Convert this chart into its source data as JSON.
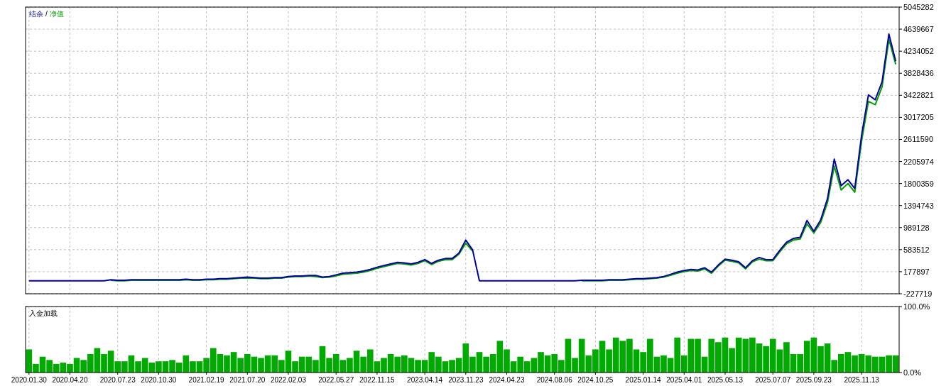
{
  "chart_data": [
    {
      "type": "line",
      "legend": "top left",
      "annotations": [
        "/"
      ],
      "grid": true,
      "tick_labels": "y",
      "line_style": "solid",
      "categories": [
        null,
        null,
        null,
        null,
        null,
        null,
        null,
        null,
        null,
        null,
        null,
        null,
        null,
        null,
        null,
        null,
        null,
        null,
        null,
        null,
        null,
        null,
        null,
        null,
        null,
        null,
        null,
        null,
        null,
        null,
        null,
        null,
        null,
        null,
        null,
        null,
        null,
        null,
        null,
        null,
        null,
        null,
        null,
        null,
        null,
        null,
        null,
        null,
        null,
        null,
        null,
        null,
        null,
        null,
        null,
        null,
        null,
        null,
        null,
        null,
        null,
        null,
        null,
        null,
        null,
        null,
        null,
        null,
        null,
        null,
        null,
        null,
        null,
        null,
        null,
        null,
        null,
        null,
        null,
        null,
        null,
        null,
        null,
        null,
        null,
        null,
        null,
        null,
        null,
        null,
        null,
        null,
        null,
        null,
        null,
        null,
        null,
        null,
        null,
        null,
        null,
        null,
        null,
        null,
        null,
        null,
        null,
        null,
        null,
        null,
        null,
        null,
        null,
        null,
        null,
        null,
        null,
        null,
        null,
        null,
        null,
        null,
        null,
        null,
        null,
        null,
        null,
        null
      ],
      "ylim": [
        -227719,
        5045282
      ],
      "yticks": [
        -227719,
        177897,
        583512,
        989128,
        1394743,
        1800359,
        2205974,
        2611590,
        3017205,
        3422821,
        3828436,
        4234052,
        4639667,
        5045282
      ],
      "series": [
        {
          "name": "结余",
          "color": "#0000a0",
          "values": [
            10000,
            10000,
            10000,
            10000,
            10000,
            10000,
            10000,
            10000,
            10000,
            10000,
            10000,
            10000,
            30000,
            20000,
            20000,
            30000,
            30000,
            30000,
            30000,
            30000,
            30000,
            30000,
            30000,
            40000,
            30000,
            30000,
            40000,
            40000,
            50000,
            50000,
            60000,
            70000,
            80000,
            70000,
            60000,
            60000,
            70000,
            70000,
            90000,
            100000,
            100000,
            110000,
            110000,
            80000,
            90000,
            120000,
            150000,
            160000,
            170000,
            190000,
            220000,
            260000,
            290000,
            320000,
            350000,
            340000,
            320000,
            350000,
            400000,
            330000,
            390000,
            420000,
            420000,
            520000,
            760000,
            580000,
            10000,
            10000,
            10000,
            10000,
            10000,
            10000,
            10000,
            10000,
            10000,
            10000,
            10000,
            10000,
            10000,
            10000,
            10000,
            20000,
            20000,
            20000,
            20000,
            30000,
            30000,
            30000,
            40000,
            50000,
            50000,
            60000,
            70000,
            90000,
            130000,
            170000,
            200000,
            220000,
            210000,
            250000,
            170000,
            300000,
            410000,
            390000,
            360000,
            250000,
            380000,
            440000,
            400000,
            400000,
            570000,
            720000,
            790000,
            810000,
            1120000,
            920000,
            1130000,
            1520000,
            2250000,
            1760000,
            1870000,
            1710000,
            2690000,
            3430000,
            3340000,
            3670000,
            4550000,
            4050000
          ]
        },
        {
          "name": "净值",
          "color": "#00a000",
          "values": [
            null,
            null,
            null,
            null,
            null,
            null,
            null,
            null,
            null,
            null,
            null,
            null,
            20000,
            10000,
            10000,
            20000,
            20000,
            20000,
            20000,
            20000,
            20000,
            20000,
            20000,
            30000,
            20000,
            20000,
            30000,
            30000,
            40000,
            40000,
            50000,
            60000,
            60000,
            60000,
            50000,
            50000,
            60000,
            60000,
            80000,
            90000,
            90000,
            100000,
            90000,
            70000,
            80000,
            100000,
            130000,
            140000,
            150000,
            170000,
            200000,
            240000,
            270000,
            300000,
            330000,
            320000,
            300000,
            330000,
            380000,
            310000,
            370000,
            400000,
            400000,
            500000,
            700000,
            560000,
            null,
            null,
            null,
            null,
            null,
            null,
            null,
            null,
            null,
            null,
            null,
            null,
            null,
            null,
            null,
            10000,
            10000,
            10000,
            10000,
            20000,
            20000,
            20000,
            30000,
            40000,
            40000,
            50000,
            60000,
            80000,
            110000,
            150000,
            180000,
            200000,
            190000,
            230000,
            150000,
            280000,
            390000,
            370000,
            340000,
            230000,
            360000,
            410000,
            380000,
            380000,
            540000,
            690000,
            760000,
            780000,
            1060000,
            890000,
            1080000,
            1450000,
            2120000,
            1680000,
            1800000,
            1640000,
            2580000,
            3310000,
            3250000,
            3580000,
            4450000,
            3990000
          ]
        }
      ]
    },
    {
      "type": "bar",
      "title": "入金加载",
      "grid": true,
      "categories": [
        "2020.01.30",
        null,
        null,
        null,
        null,
        null,
        "2020.04.20",
        null,
        null,
        null,
        null,
        null,
        null,
        "2020.07.23",
        null,
        null,
        null,
        null,
        null,
        "2020.10.30",
        null,
        null,
        null,
        null,
        null,
        null,
        "2021.02.19",
        null,
        null,
        null,
        null,
        null,
        "2021.07.20",
        null,
        null,
        null,
        null,
        null,
        "2022.02.03",
        null,
        null,
        null,
        null,
        null,
        null,
        "2022.05.27",
        null,
        null,
        null,
        null,
        null,
        "2022.11.15",
        null,
        null,
        null,
        null,
        null,
        null,
        "2023.04.14",
        null,
        null,
        null,
        null,
        null,
        "2023.11.23",
        null,
        null,
        null,
        null,
        null,
        "2024.04.23",
        null,
        null,
        null,
        null,
        null,
        null,
        "2024.08.06",
        null,
        null,
        null,
        null,
        null,
        "2024.10.25",
        null,
        null,
        null,
        null,
        null,
        null,
        "2025.01.14",
        null,
        null,
        null,
        null,
        null,
        "2025.04.01",
        null,
        null,
        null,
        null,
        null,
        "2025.05.13",
        null,
        null,
        null,
        null,
        null,
        null,
        "2025.07.07",
        null,
        null,
        null,
        null,
        null,
        "2025.09.23",
        null,
        null,
        null,
        null,
        null,
        null,
        "2025.11.13",
        null,
        null,
        null,
        null,
        null
      ],
      "ylim": [
        0,
        100
      ],
      "yticks": [
        {
          "value": 0,
          "label": "0.0%"
        },
        {
          "value": 100,
          "label": "100.0%"
        }
      ],
      "series": [
        {
          "color": "#00aa00",
          "values": [
            35,
            13,
            24,
            19,
            13,
            15,
            13,
            22,
            19,
            28,
            37,
            28,
            33,
            17,
            17,
            26,
            17,
            22,
            15,
            17,
            17,
            19,
            15,
            26,
            17,
            17,
            22,
            37,
            28,
            26,
            31,
            22,
            28,
            24,
            22,
            26,
            26,
            19,
            33,
            17,
            24,
            24,
            19,
            40,
            22,
            28,
            19,
            22,
            33,
            24,
            35,
            17,
            22,
            28,
            24,
            26,
            22,
            19,
            19,
            31,
            24,
            17,
            19,
            22,
            44,
            24,
            31,
            24,
            28,
            48,
            35,
            17,
            24,
            17,
            22,
            31,
            26,
            28,
            19,
            51,
            22,
            51,
            26,
            35,
            48,
            35,
            53,
            48,
            51,
            35,
            31,
            51,
            24,
            26,
            22,
            53,
            26,
            51,
            51,
            24,
            51,
            46,
            53,
            37,
            53,
            51,
            53,
            44,
            40,
            51,
            35,
            46,
            28,
            28,
            48,
            53,
            40,
            44,
            19,
            28,
            31,
            26,
            28,
            26,
            24,
            24,
            26,
            26
          ]
        }
      ]
    }
  ]
}
